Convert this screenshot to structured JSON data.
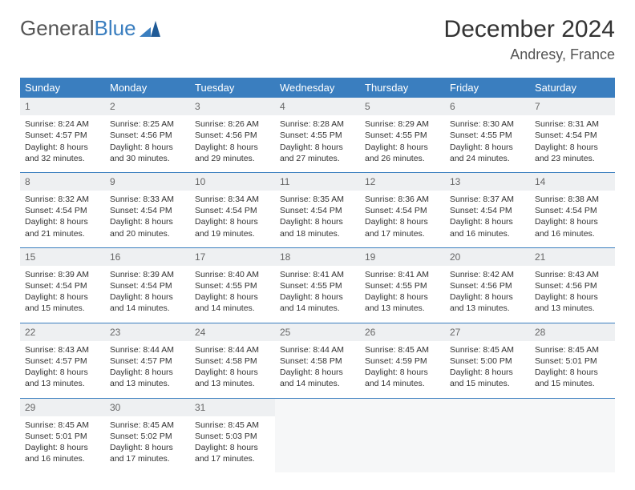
{
  "logo": {
    "text1": "General",
    "text2": "Blue"
  },
  "title": "December 2024",
  "location": "Andresy, France",
  "colors": {
    "header_bg": "#3a7ebf",
    "header_fg": "#ffffff",
    "daynum_bg": "#eef0f2",
    "border": "#3a7ebf"
  },
  "weekdays": [
    "Sunday",
    "Monday",
    "Tuesday",
    "Wednesday",
    "Thursday",
    "Friday",
    "Saturday"
  ],
  "weeks": [
    [
      {
        "n": "1",
        "sr": "Sunrise: 8:24 AM",
        "ss": "Sunset: 4:57 PM",
        "d1": "Daylight: 8 hours",
        "d2": "and 32 minutes."
      },
      {
        "n": "2",
        "sr": "Sunrise: 8:25 AM",
        "ss": "Sunset: 4:56 PM",
        "d1": "Daylight: 8 hours",
        "d2": "and 30 minutes."
      },
      {
        "n": "3",
        "sr": "Sunrise: 8:26 AM",
        "ss": "Sunset: 4:56 PM",
        "d1": "Daylight: 8 hours",
        "d2": "and 29 minutes."
      },
      {
        "n": "4",
        "sr": "Sunrise: 8:28 AM",
        "ss": "Sunset: 4:55 PM",
        "d1": "Daylight: 8 hours",
        "d2": "and 27 minutes."
      },
      {
        "n": "5",
        "sr": "Sunrise: 8:29 AM",
        "ss": "Sunset: 4:55 PM",
        "d1": "Daylight: 8 hours",
        "d2": "and 26 minutes."
      },
      {
        "n": "6",
        "sr": "Sunrise: 8:30 AM",
        "ss": "Sunset: 4:55 PM",
        "d1": "Daylight: 8 hours",
        "d2": "and 24 minutes."
      },
      {
        "n": "7",
        "sr": "Sunrise: 8:31 AM",
        "ss": "Sunset: 4:54 PM",
        "d1": "Daylight: 8 hours",
        "d2": "and 23 minutes."
      }
    ],
    [
      {
        "n": "8",
        "sr": "Sunrise: 8:32 AM",
        "ss": "Sunset: 4:54 PM",
        "d1": "Daylight: 8 hours",
        "d2": "and 21 minutes."
      },
      {
        "n": "9",
        "sr": "Sunrise: 8:33 AM",
        "ss": "Sunset: 4:54 PM",
        "d1": "Daylight: 8 hours",
        "d2": "and 20 minutes."
      },
      {
        "n": "10",
        "sr": "Sunrise: 8:34 AM",
        "ss": "Sunset: 4:54 PM",
        "d1": "Daylight: 8 hours",
        "d2": "and 19 minutes."
      },
      {
        "n": "11",
        "sr": "Sunrise: 8:35 AM",
        "ss": "Sunset: 4:54 PM",
        "d1": "Daylight: 8 hours",
        "d2": "and 18 minutes."
      },
      {
        "n": "12",
        "sr": "Sunrise: 8:36 AM",
        "ss": "Sunset: 4:54 PM",
        "d1": "Daylight: 8 hours",
        "d2": "and 17 minutes."
      },
      {
        "n": "13",
        "sr": "Sunrise: 8:37 AM",
        "ss": "Sunset: 4:54 PM",
        "d1": "Daylight: 8 hours",
        "d2": "and 16 minutes."
      },
      {
        "n": "14",
        "sr": "Sunrise: 8:38 AM",
        "ss": "Sunset: 4:54 PM",
        "d1": "Daylight: 8 hours",
        "d2": "and 16 minutes."
      }
    ],
    [
      {
        "n": "15",
        "sr": "Sunrise: 8:39 AM",
        "ss": "Sunset: 4:54 PM",
        "d1": "Daylight: 8 hours",
        "d2": "and 15 minutes."
      },
      {
        "n": "16",
        "sr": "Sunrise: 8:39 AM",
        "ss": "Sunset: 4:54 PM",
        "d1": "Daylight: 8 hours",
        "d2": "and 14 minutes."
      },
      {
        "n": "17",
        "sr": "Sunrise: 8:40 AM",
        "ss": "Sunset: 4:55 PM",
        "d1": "Daylight: 8 hours",
        "d2": "and 14 minutes."
      },
      {
        "n": "18",
        "sr": "Sunrise: 8:41 AM",
        "ss": "Sunset: 4:55 PM",
        "d1": "Daylight: 8 hours",
        "d2": "and 14 minutes."
      },
      {
        "n": "19",
        "sr": "Sunrise: 8:41 AM",
        "ss": "Sunset: 4:55 PM",
        "d1": "Daylight: 8 hours",
        "d2": "and 13 minutes."
      },
      {
        "n": "20",
        "sr": "Sunrise: 8:42 AM",
        "ss": "Sunset: 4:56 PM",
        "d1": "Daylight: 8 hours",
        "d2": "and 13 minutes."
      },
      {
        "n": "21",
        "sr": "Sunrise: 8:43 AM",
        "ss": "Sunset: 4:56 PM",
        "d1": "Daylight: 8 hours",
        "d2": "and 13 minutes."
      }
    ],
    [
      {
        "n": "22",
        "sr": "Sunrise: 8:43 AM",
        "ss": "Sunset: 4:57 PM",
        "d1": "Daylight: 8 hours",
        "d2": "and 13 minutes."
      },
      {
        "n": "23",
        "sr": "Sunrise: 8:44 AM",
        "ss": "Sunset: 4:57 PM",
        "d1": "Daylight: 8 hours",
        "d2": "and 13 minutes."
      },
      {
        "n": "24",
        "sr": "Sunrise: 8:44 AM",
        "ss": "Sunset: 4:58 PM",
        "d1": "Daylight: 8 hours",
        "d2": "and 13 minutes."
      },
      {
        "n": "25",
        "sr": "Sunrise: 8:44 AM",
        "ss": "Sunset: 4:58 PM",
        "d1": "Daylight: 8 hours",
        "d2": "and 14 minutes."
      },
      {
        "n": "26",
        "sr": "Sunrise: 8:45 AM",
        "ss": "Sunset: 4:59 PM",
        "d1": "Daylight: 8 hours",
        "d2": "and 14 minutes."
      },
      {
        "n": "27",
        "sr": "Sunrise: 8:45 AM",
        "ss": "Sunset: 5:00 PM",
        "d1": "Daylight: 8 hours",
        "d2": "and 15 minutes."
      },
      {
        "n": "28",
        "sr": "Sunrise: 8:45 AM",
        "ss": "Sunset: 5:01 PM",
        "d1": "Daylight: 8 hours",
        "d2": "and 15 minutes."
      }
    ],
    [
      {
        "n": "29",
        "sr": "Sunrise: 8:45 AM",
        "ss": "Sunset: 5:01 PM",
        "d1": "Daylight: 8 hours",
        "d2": "and 16 minutes."
      },
      {
        "n": "30",
        "sr": "Sunrise: 8:45 AM",
        "ss": "Sunset: 5:02 PM",
        "d1": "Daylight: 8 hours",
        "d2": "and 17 minutes."
      },
      {
        "n": "31",
        "sr": "Sunrise: 8:45 AM",
        "ss": "Sunset: 5:03 PM",
        "d1": "Daylight: 8 hours",
        "d2": "and 17 minutes."
      },
      null,
      null,
      null,
      null
    ]
  ]
}
